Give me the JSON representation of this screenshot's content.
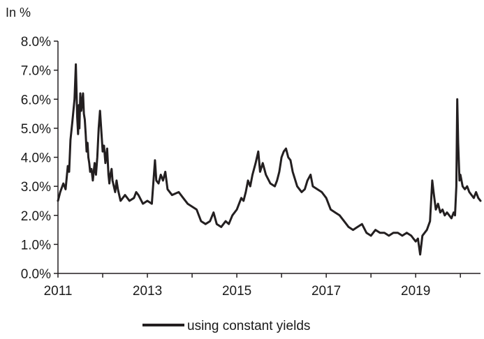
{
  "chart_data": {
    "type": "line",
    "unit_label": "In %",
    "title": "",
    "xlabel": "",
    "ylabel": "",
    "xlim": [
      2011.0,
      2020.45
    ],
    "ylim": [
      0,
      8
    ],
    "y_ticks": [
      "0.0%",
      "1.0%",
      "2.0%",
      "3.0%",
      "4.0%",
      "5.0%",
      "6.0%",
      "7.0%",
      "8.0%"
    ],
    "y_tick_values": [
      0,
      1,
      2,
      3,
      4,
      5,
      6,
      7,
      8
    ],
    "x_ticks": [
      "2011",
      "2013",
      "2015",
      "2017",
      "2019"
    ],
    "x_tick_values": [
      2011,
      2013,
      2015,
      2017,
      2019
    ],
    "grid": false,
    "legend_position": "bottom-center",
    "series": [
      {
        "name": "using constant yields",
        "color": "#231f20",
        "x": [
          2011.0,
          2011.05,
          2011.12,
          2011.17,
          2011.22,
          2011.25,
          2011.28,
          2011.32,
          2011.37,
          2011.4,
          2011.43,
          2011.45,
          2011.47,
          2011.48,
          2011.5,
          2011.52,
          2011.54,
          2011.56,
          2011.58,
          2011.6,
          2011.62,
          2011.64,
          2011.66,
          2011.68,
          2011.7,
          2011.72,
          2011.75,
          2011.78,
          2011.82,
          2011.85,
          2011.88,
          2011.91,
          2011.94,
          2011.97,
          2012.0,
          2012.03,
          2012.06,
          2012.1,
          2012.13,
          2012.15,
          2012.17,
          2012.2,
          2012.22,
          2012.25,
          2012.28,
          2012.31,
          2012.34,
          2012.37,
          2012.4,
          2012.45,
          2012.5,
          2012.6,
          2012.7,
          2012.75,
          2012.8,
          2012.9,
          2013.0,
          2013.1,
          2013.17,
          2013.2,
          2013.25,
          2013.3,
          2013.35,
          2013.4,
          2013.45,
          2013.55,
          2013.7,
          2013.8,
          2013.9,
          2014.0,
          2014.1,
          2014.2,
          2014.3,
          2014.4,
          2014.48,
          2014.55,
          2014.65,
          2014.75,
          2014.82,
          2014.9,
          2015.0,
          2015.1,
          2015.15,
          2015.2,
          2015.25,
          2015.3,
          2015.35,
          2015.42,
          2015.48,
          2015.52,
          2015.58,
          2015.65,
          2015.75,
          2015.85,
          2015.9,
          2015.95,
          2016.0,
          2016.05,
          2016.1,
          2016.15,
          2016.2,
          2016.25,
          2016.35,
          2016.45,
          2016.52,
          2016.58,
          2016.65,
          2016.7,
          2016.8,
          2016.9,
          2017.0,
          2017.1,
          2017.2,
          2017.3,
          2017.4,
          2017.5,
          2017.6,
          2017.7,
          2017.8,
          2017.9,
          2018.0,
          2018.1,
          2018.2,
          2018.3,
          2018.4,
          2018.5,
          2018.6,
          2018.7,
          2018.8,
          2018.9,
          2018.95,
          2019.0,
          2019.05,
          2019.1,
          2019.15,
          2019.25,
          2019.32,
          2019.37,
          2019.4,
          2019.45,
          2019.5,
          2019.55,
          2019.6,
          2019.65,
          2019.7,
          2019.8,
          2019.85,
          2019.88,
          2019.91,
          2019.93,
          2019.95,
          2019.98,
          2020.0,
          2020.05,
          2020.1,
          2020.15,
          2020.2,
          2020.25,
          2020.3,
          2020.35,
          2020.4,
          2020.45
        ],
        "values": [
          2.5,
          2.8,
          3.1,
          2.9,
          3.7,
          3.5,
          4.6,
          5.2,
          6.0,
          7.2,
          5.4,
          4.8,
          5.8,
          5.0,
          6.2,
          5.6,
          5.9,
          6.2,
          5.5,
          5.3,
          4.8,
          4.2,
          4.5,
          4.0,
          3.8,
          3.5,
          3.6,
          3.2,
          3.8,
          3.4,
          4.0,
          5.0,
          5.6,
          4.9,
          4.2,
          4.4,
          3.8,
          4.3,
          3.4,
          3.1,
          3.4,
          3.6,
          3.2,
          3.0,
          2.8,
          3.2,
          2.9,
          2.7,
          2.5,
          2.6,
          2.7,
          2.5,
          2.6,
          2.8,
          2.7,
          2.4,
          2.5,
          2.4,
          3.9,
          3.2,
          3.1,
          3.4,
          3.2,
          3.5,
          2.9,
          2.7,
          2.8,
          2.6,
          2.4,
          2.3,
          2.2,
          1.8,
          1.7,
          1.8,
          2.1,
          1.7,
          1.6,
          1.8,
          1.7,
          2.0,
          2.2,
          2.6,
          2.5,
          2.8,
          3.2,
          3.0,
          3.4,
          3.8,
          4.2,
          3.5,
          3.8,
          3.4,
          3.1,
          3.0,
          3.2,
          3.5,
          4.0,
          4.2,
          4.3,
          4.0,
          3.9,
          3.5,
          3.0,
          2.8,
          2.9,
          3.2,
          3.4,
          3.0,
          2.9,
          2.8,
          2.6,
          2.2,
          2.1,
          2.0,
          1.8,
          1.6,
          1.5,
          1.6,
          1.7,
          1.4,
          1.3,
          1.5,
          1.4,
          1.4,
          1.3,
          1.4,
          1.4,
          1.3,
          1.4,
          1.3,
          1.2,
          1.1,
          1.2,
          0.65,
          1.3,
          1.5,
          1.8,
          3.2,
          2.8,
          2.2,
          2.4,
          2.1,
          2.2,
          2.0,
          2.1,
          1.9,
          2.1,
          2.0,
          3.0,
          6.0,
          4.5,
          3.2,
          3.4,
          3.0,
          2.9,
          3.0,
          2.8,
          2.7,
          2.6,
          2.8,
          2.6,
          2.5
        ]
      }
    ]
  }
}
